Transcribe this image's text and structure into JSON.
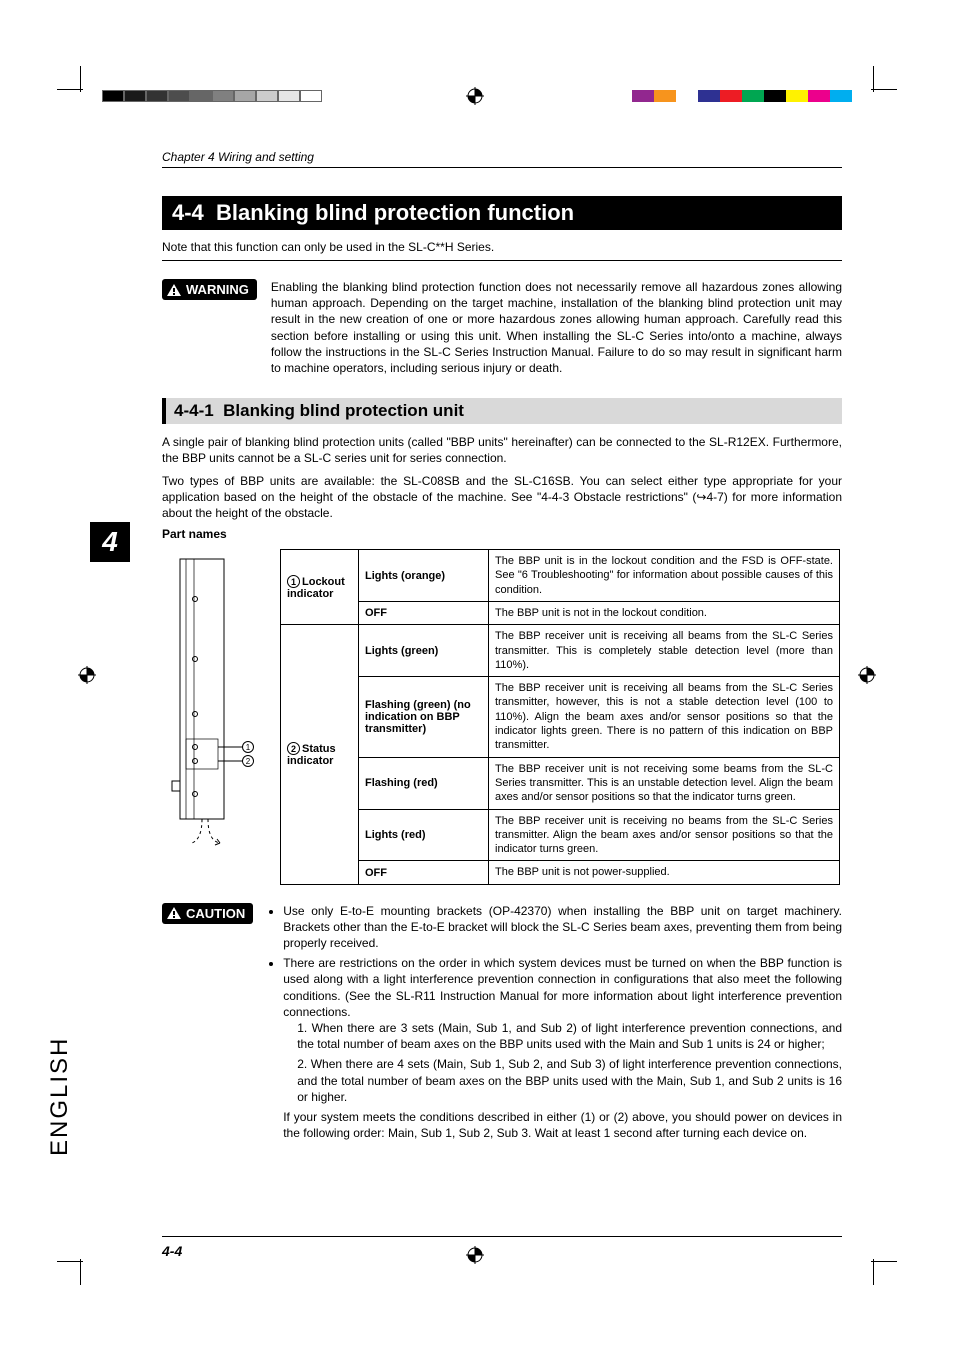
{
  "crop_marks": {
    "color": "#000000"
  },
  "color_bars_left": [
    "#000000",
    "#1a1a1a",
    "#333333",
    "#4d4d4d",
    "#666666",
    "#808080",
    "#a6a6a6",
    "#cccccc",
    "#e6e6e6",
    "#ffffff"
  ],
  "color_bars_right": [
    "#00aeef",
    "#ec008c",
    "#fff200",
    "#000000",
    "#00a651",
    "#ed1c24",
    "#2e3192",
    "#ffffff",
    "#f7941d",
    "#92278f"
  ],
  "chapter_header": "Chapter 4  Wiring and setting",
  "section_number": "4-4",
  "section_title": "Blanking blind protection function",
  "intro_note": "Note that this function can only be used in the SL-C**H Series.",
  "warning": {
    "label": "WARNING",
    "text": "Enabling the blanking blind protection function does not necessarily remove all hazardous zones allowing human approach. Depending on the target machine, installation of the blanking blind protection unit may result in the new creation of one or more hazardous zones allowing human approach. Carefully read this section before installing or using this unit. When installing the SL-C Series into/onto a machine, always follow the instructions in the SL-C Series Instruction Manual. Failure to do so may result in significant harm to machine operators, including serious injury or death."
  },
  "subsection_number": "4-4-1",
  "subsection_title": "Blanking blind protection unit",
  "sub_para1": "A single pair of blanking blind protection units (called \"BBP units\" hereinafter) can be connected to the SL-R12EX.  Furthermore, the BBP units cannot be a SL-C series unit for series connection.",
  "sub_para2": "Two types of BBP units are available: the SL-C08SB and the SL-C16SB. You can select either type appropriate for your application based on the height of the obstacle of the machine. See \"4-4-3 Obstacle restrictions\" (↪4-7) for more information about the height of the obstacle.",
  "partnames_label": "Part names",
  "indicator_table": {
    "rows": [
      {
        "group_num": "1",
        "group": "Lockout indicator",
        "state": "Lights (orange)",
        "desc": "The BBP unit is in the lockout condition and the FSD is OFF-state. See \"6 Troubleshooting\" for information about possible causes of this condition."
      },
      {
        "state": "OFF",
        "desc": "The BBP unit is not in the lockout condition."
      },
      {
        "group_num": "2",
        "group": "Status indicator",
        "state": "Lights (green)",
        "desc": "The BBP receiver unit is receiving all beams from the SL-C Series transmitter. This is completely stable detection level (more than 110%)."
      },
      {
        "state": "Flashing (green) (no indication on BBP transmitter)",
        "desc": "The BBP receiver unit is receiving all beams from the SL-C Series transmitter, however, this is not a stable detection level (100 to 110%). Align the beam axes and/or sensor positions so that the indicator lights green. There is no pattern of this indication on BBP transmitter."
      },
      {
        "state": "Flashing (red)",
        "desc": "The BBP receiver unit is not receiving some beams from the SL-C Series transmitter. This is an unstable detection level. Align the beam axes and/or sensor positions so that the indicator turns green."
      },
      {
        "state": "Lights (red)",
        "desc": "The BBP receiver unit is receiving no beams from the SL-C Series transmitter. Align the beam axes and/or sensor positions so that the indicator turns green."
      },
      {
        "state": "OFF",
        "desc": "The BBP unit is not power-supplied."
      }
    ]
  },
  "caution": {
    "label": "CAUTION",
    "bullets": [
      "Use only E-to-E mounting brackets (OP-42370) when installing the BBP unit on target machinery. Brackets other than the E-to-E bracket will block the SL-C Series beam axes, preventing them from being properly received.",
      "There are restrictions on the order in which system devices must be turned on when the BBP function is used along with a light interference prevention connection in configurations that also meet the following conditions. (See the SL-R11 Instruction Manual for more information about light interference prevention connections."
    ],
    "numbered": [
      "When there are 3 sets (Main, Sub 1, and Sub 2) of light interference prevention connections, and the total number of beam axes on the BBP units used with the Main and Sub 1 units is 24 or higher;",
      "When there are 4 sets (Main, Sub 1, Sub 2, and Sub 3) of light interference prevention connections, and the total number of beam axes on the BBP units used with the Main, Sub 1, and Sub 2 units is 16 or higher."
    ],
    "trail": "If your system meets the conditions described in either (1) or (2) above, you should power on devices in the following order: Main, Sub 1, Sub 2, Sub 3. Wait at least 1 second after turning each device on."
  },
  "page_number": "4-4",
  "side_chapter": "4",
  "side_lang": "ENGLISH",
  "diagram_callouts": {
    "one": "1",
    "two": "2"
  },
  "table_styling": {
    "border_color": "#000000",
    "header_bg": "#ffffff",
    "font_size_pt": 8.2
  },
  "heading_styling": {
    "section_bg": "#000000",
    "section_fg": "#ffffff",
    "subsection_bg": "#d9d9d9",
    "subsection_border": "#000000"
  }
}
